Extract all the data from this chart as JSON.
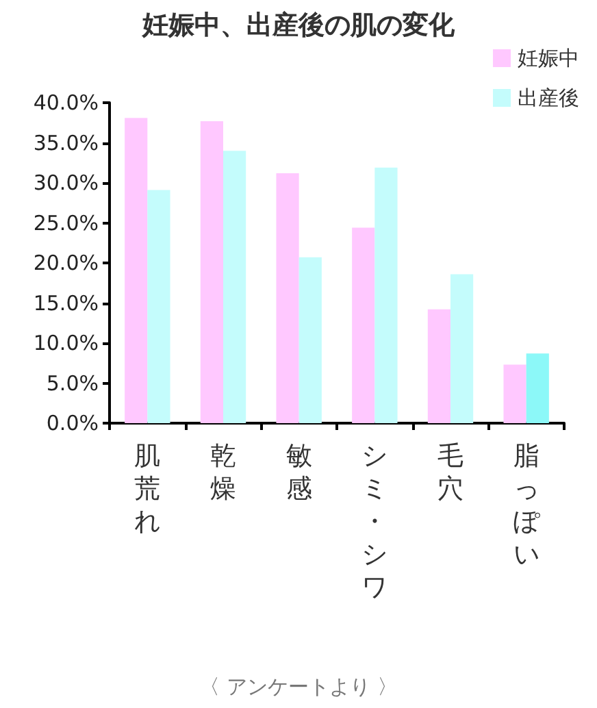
{
  "chart_data": {
    "type": "bar",
    "title": "妊娠中、出産後の肌の変化",
    "categories": [
      "肌荒れ",
      "乾燥",
      "敏感",
      "シミ・シワ",
      "毛穴",
      "脂っぽい"
    ],
    "series": [
      {
        "name": "妊娠中",
        "color": "#ffc8ff",
        "values": [
          38.1,
          37.7,
          31.2,
          24.4,
          14.2,
          7.3
        ]
      },
      {
        "name": "出産後",
        "color": "#c4fcfc",
        "colors": [
          "#c4fcfc",
          "#c4fcfc",
          "#c4fcfc",
          "#c4fcfc",
          "#c4fcfc",
          "#8cf8f8"
        ],
        "values": [
          29.1,
          34.0,
          20.7,
          31.9,
          18.6,
          8.7
        ]
      }
    ],
    "ylim": [
      0,
      40
    ],
    "yticks": [
      {
        "value": 0,
        "label": "0.0%"
      },
      {
        "value": 5,
        "label": "5.0%"
      },
      {
        "value": 10,
        "label": "10.0%"
      },
      {
        "value": 15,
        "label": "15.0%"
      },
      {
        "value": 20,
        "label": "20.0%"
      },
      {
        "value": 25,
        "label": "25.0%"
      },
      {
        "value": 30,
        "label": "30.0%"
      },
      {
        "value": 35,
        "label": "35.0%"
      },
      {
        "value": 40,
        "label": "40.0%"
      }
    ],
    "grid": false,
    "legend": "top right",
    "annotations": [
      "〈 アンケートより 〉"
    ]
  }
}
